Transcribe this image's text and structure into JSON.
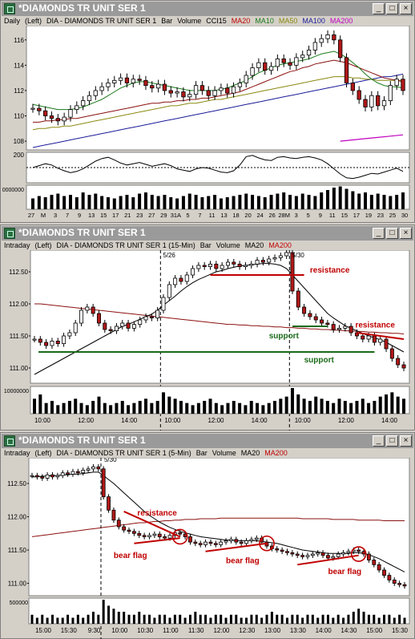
{
  "colors": {
    "up": "#ffffff",
    "down": "#b01818",
    "ma20": "#1a7a1a",
    "ma10": "#1a7a1a",
    "ma50": "#8a8a10",
    "ma100": "#1c1c9a",
    "ma200": "#c000c0",
    "ma200b": "#8b1010",
    "annot_red": "#c00000",
    "annot_green": "#1a6a1a",
    "title_bg": "#9a9a9a"
  },
  "windows": [
    {
      "title": "*DIAMONDS TR UNIT SER 1",
      "info": {
        "interval": "Daily",
        "side": "(Left)",
        "symbol": "DIA - DIAMONDS TR UNIT SER 1",
        "items": [
          {
            "t": "Bar",
            "c": "#000"
          },
          {
            "t": "Volume",
            "c": "#000"
          },
          {
            "t": "CCI15",
            "c": "#000"
          },
          {
            "t": "MA20",
            "c": "#c00000"
          },
          {
            "t": "MA10",
            "c": "#1a7a1a"
          },
          {
            "t": "MA50",
            "c": "#8a8a10"
          },
          {
            "t": "MA100",
            "c": "#1c1c9a"
          },
          {
            "t": "MA200",
            "c": "#c000c0"
          }
        ]
      }
    },
    {
      "title": "*DIAMONDS TR UNIT SER 1",
      "info": {
        "interval": "Intraday",
        "side": "(Left)",
        "symbol": "DIA - DIAMONDS TR UNIT SER 1 (15-Min)",
        "items": [
          {
            "t": "Bar",
            "c": "#000"
          },
          {
            "t": "Volume",
            "c": "#000"
          },
          {
            "t": "MA20",
            "c": "#000"
          },
          {
            "t": "MA200",
            "c": "#c00000"
          }
        ]
      }
    },
    {
      "title": "*DIAMONDS TR UNIT SER 1",
      "info": {
        "interval": "Intraday",
        "side": "(Left)",
        "symbol": "DIA - DIAMONDS TR UNIT SER 1 (5-Min)",
        "items": [
          {
            "t": "Bar",
            "c": "#000"
          },
          {
            "t": "Volume",
            "c": "#000"
          },
          {
            "t": "MA20",
            "c": "#000"
          },
          {
            "t": "MA200",
            "c": "#c00000"
          }
        ]
      }
    }
  ],
  "window_buttons": [
    "_",
    "□",
    "×"
  ],
  "chart_data": [
    {
      "type": "candlestick",
      "panel": "daily-price",
      "x_labels": [
        "27",
        "M",
        "3",
        "7",
        "9",
        "13",
        "15",
        "17",
        "21",
        "23",
        "27",
        "29",
        "31A",
        "5",
        "7",
        "11",
        "13",
        "18",
        "20",
        "24",
        "26",
        "28M",
        "3",
        "5",
        "9",
        "11",
        "15",
        "17",
        "19",
        "23",
        "25",
        "30"
      ],
      "ylim": [
        107.5,
        117
      ],
      "yticks": [
        "108",
        "110",
        "112",
        "114",
        "116"
      ],
      "closes": [
        110.6,
        110.4,
        110.0,
        109.8,
        109.6,
        109.9,
        110.5,
        110.8,
        111.2,
        111.6,
        112.0,
        112.3,
        112.6,
        112.8,
        113.0,
        112.6,
        112.9,
        112.8,
        112.4,
        112.2,
        112.5,
        112.0,
        111.8,
        111.9,
        111.5,
        111.7,
        112.4,
        112.0,
        111.6,
        112.0,
        112.2,
        111.8,
        112.3,
        112.6,
        113.2,
        113.8,
        114.2,
        113.6,
        113.9,
        114.5,
        114.2,
        114.0,
        114.6,
        114.8,
        115.2,
        115.8,
        116.1,
        116.4,
        116.0,
        114.6,
        112.6,
        112.0,
        111.3,
        110.7,
        111.6,
        110.8,
        111.2,
        112.4,
        112.9,
        112.0
      ],
      "ma20": [
        110.9,
        110.8,
        110.7,
        110.6,
        110.5,
        110.5,
        110.5,
        110.6,
        110.7,
        110.9,
        111.1,
        111.3,
        111.6,
        111.9,
        112.2,
        112.4,
        112.6,
        112.7,
        112.7,
        112.6,
        112.5,
        112.4,
        112.3,
        112.2,
        112.1,
        112.0,
        112.0,
        112.0,
        112.0,
        112.0,
        112.1,
        112.2,
        112.4,
        112.6,
        112.8,
        113.1,
        113.4,
        113.6,
        113.8,
        114.0,
        114.1,
        114.2,
        114.3,
        114.4,
        114.5,
        114.7,
        114.9,
        115.0,
        115.1,
        114.9,
        114.6,
        114.2,
        113.8,
        113.3,
        112.9,
        112.6,
        112.4,
        112.3,
        112.3,
        112.2
      ],
      "ma50": [
        109.5,
        109.5,
        109.6,
        109.6,
        109.7,
        109.7,
        109.8,
        109.8,
        109.9,
        110.0,
        110.1,
        110.2,
        110.3,
        110.4,
        110.5,
        110.6,
        110.7,
        110.8,
        110.9,
        111.0,
        111.0,
        111.1,
        111.1,
        111.2,
        111.2,
        111.3,
        111.3,
        111.4,
        111.4,
        111.5,
        111.6,
        111.7,
        111.8,
        111.9,
        112.1,
        112.3,
        112.5,
        112.7,
        112.9,
        113.1,
        113.3,
        113.5,
        113.6,
        113.8,
        113.9,
        114.1,
        114.2,
        114.3,
        114.4,
        114.3,
        114.2,
        114.0,
        113.8,
        113.6,
        113.4,
        113.2,
        113.0,
        112.9,
        112.8,
        112.7
      ],
      "ma100": [
        108.9,
        109.0,
        109.0,
        109.1,
        109.1,
        109.2,
        109.2,
        109.3,
        109.4,
        109.5,
        109.6,
        109.7,
        109.8,
        109.9,
        110.0,
        110.1,
        110.2,
        110.3,
        110.4,
        110.5,
        110.6,
        110.7,
        110.8,
        110.8,
        110.9,
        111.0,
        111.0,
        111.1,
        111.2,
        111.3,
        111.3,
        111.4,
        111.5,
        111.6,
        111.7,
        111.8,
        111.9,
        112.0,
        112.1,
        112.2,
        112.3,
        112.4,
        112.5,
        112.6,
        112.7,
        112.8,
        112.9,
        113.0,
        113.1,
        113.1,
        113.1,
        113.0,
        113.0,
        112.9,
        112.9,
        112.8,
        112.8,
        112.8,
        112.8,
        112.8
      ],
      "ma10": [
        107.5,
        107.6,
        107.7,
        107.8,
        107.9,
        108.0,
        108.1,
        108.2,
        108.3,
        108.4,
        108.5,
        108.6,
        108.7,
        108.8,
        108.9,
        109.0,
        109.1,
        109.2,
        109.3,
        109.4,
        109.5,
        109.6,
        109.7,
        109.8,
        109.9,
        110.0,
        110.1,
        110.2,
        110.3,
        110.4,
        110.5,
        110.6,
        110.7,
        110.8,
        110.9,
        111.0,
        111.1,
        111.2,
        111.3,
        111.4,
        111.5,
        111.6,
        111.7,
        111.8,
        111.9,
        112.0,
        112.1,
        112.2,
        112.3,
        112.4,
        112.5,
        112.6,
        112.7,
        112.8,
        112.9,
        113.0,
        113.1,
        113.1,
        113.2,
        113.3
      ],
      "ma200_segment": [
        108.0,
        108.1,
        108.2,
        108.3,
        108.4,
        108.5
      ]
    },
    {
      "type": "line",
      "panel": "daily-cci",
      "yticks": [
        "200"
      ],
      "values": [
        0,
        30,
        60,
        40,
        -10,
        -50,
        -80,
        -60,
        -20,
        40,
        100,
        140,
        160,
        120,
        70,
        40,
        60,
        80,
        50,
        20,
        40,
        60,
        30,
        -20,
        -40,
        -60,
        -20,
        0,
        -10,
        -40,
        -70,
        -80,
        -50,
        40,
        170,
        190,
        150,
        120,
        110,
        160,
        170,
        150,
        140,
        160,
        170,
        150,
        120,
        60,
        -20,
        -100,
        -160,
        -170,
        -150,
        -120,
        -90,
        -100,
        -70,
        -40,
        -10,
        -60
      ],
      "dashed_level": "0"
    },
    {
      "type": "bar",
      "panel": "daily-volume",
      "ytick": "20000000",
      "values": [
        9,
        11,
        10,
        12,
        13,
        11,
        12,
        10,
        14,
        12,
        13,
        11,
        10,
        9,
        11,
        12,
        10,
        13,
        14,
        12,
        11,
        12,
        10,
        9,
        11,
        13,
        12,
        10,
        11,
        12,
        9,
        10,
        11,
        12,
        13,
        12,
        11,
        10,
        12,
        13,
        14,
        12,
        11,
        13,
        12,
        11,
        14,
        16,
        18,
        19,
        17,
        15,
        13,
        14,
        12,
        13,
        12,
        11,
        12,
        14
      ]
    },
    {
      "type": "candlestick",
      "panel": "15min-price",
      "x_labels": [
        "10:00",
        "12:00",
        "14:00",
        "10:00",
        "12:00",
        "14:00",
        "10:00",
        "12:00",
        "14:00"
      ],
      "date_markers": [
        "5/26",
        "5/30"
      ],
      "ylim": [
        110.8,
        112.8
      ],
      "yticks": [
        "111.00",
        "111.50",
        "112.00",
        "112.50"
      ],
      "closes": [
        111.45,
        111.4,
        111.35,
        111.42,
        111.38,
        111.5,
        111.55,
        111.7,
        111.9,
        111.95,
        111.85,
        111.7,
        111.6,
        111.58,
        111.65,
        111.7,
        111.62,
        111.68,
        111.75,
        111.8,
        111.78,
        111.9,
        112.1,
        112.3,
        112.4,
        112.35,
        112.45,
        112.55,
        112.6,
        112.58,
        112.62,
        112.55,
        112.6,
        112.65,
        112.62,
        112.58,
        112.6,
        112.62,
        112.68,
        112.65,
        112.7,
        112.72,
        112.75,
        112.8,
        112.2,
        111.95,
        111.85,
        111.8,
        111.75,
        111.7,
        111.68,
        111.6,
        111.62,
        111.65,
        111.55,
        111.5,
        111.45,
        111.5,
        111.4,
        111.45,
        111.3,
        111.15,
        111.05,
        111.0
      ],
      "ma20": [
        110.9,
        110.95,
        111.0,
        111.05,
        111.1,
        111.15,
        111.2,
        111.25,
        111.3,
        111.35,
        111.4,
        111.45,
        111.5,
        111.55,
        111.6,
        111.65,
        111.68,
        111.72,
        111.76,
        111.8,
        111.84,
        111.9,
        111.98,
        112.05,
        112.12,
        112.2,
        112.27,
        112.33,
        112.38,
        112.42,
        112.46,
        112.5,
        112.52,
        112.55,
        112.57,
        112.59,
        112.6,
        112.61,
        112.62,
        112.63,
        112.63,
        112.62,
        112.6,
        112.55,
        112.45,
        112.35,
        112.25,
        112.15,
        112.05,
        111.95,
        111.85,
        111.78,
        111.72,
        111.66,
        111.62,
        111.58,
        111.54,
        111.5,
        111.47,
        111.44,
        111.4,
        111.35,
        111.3,
        111.25
      ],
      "ma200": [
        112.0,
        112.0,
        111.99,
        111.98,
        111.97,
        111.96,
        111.95,
        111.94,
        111.93,
        111.92,
        111.91,
        111.9,
        111.89,
        111.88,
        111.87,
        111.86,
        111.85,
        111.84,
        111.83,
        111.82,
        111.81,
        111.8,
        111.79,
        111.78,
        111.77,
        111.76,
        111.75,
        111.74,
        111.73,
        111.72,
        111.71,
        111.7,
        111.69,
        111.68,
        111.68,
        111.67,
        111.67,
        111.66,
        111.66,
        111.65,
        111.65,
        111.64,
        111.64,
        111.63,
        111.63,
        111.62,
        111.62,
        111.61,
        111.61,
        111.6,
        111.6,
        111.59,
        111.59,
        111.58,
        111.58,
        111.57,
        111.57,
        111.56,
        111.56,
        111.55,
        111.55,
        111.54,
        111.54,
        111.53
      ],
      "annotations": {
        "resistance_1": "resistance",
        "resistance_2": "resistance",
        "support_1": "support",
        "support_2": "support"
      },
      "levels": {
        "resistance": 112.45,
        "support_short": 111.65,
        "support_long": 111.25
      }
    },
    {
      "type": "bar",
      "panel": "15min-volume",
      "ytick": "10000000",
      "values": [
        7,
        9,
        5,
        6,
        4,
        5,
        6,
        7,
        5,
        4,
        6,
        8,
        5,
        4,
        5,
        6,
        4,
        5,
        6,
        7,
        5,
        6,
        10,
        8,
        7,
        6,
        5,
        4,
        5,
        6,
        7,
        5,
        4,
        5,
        6,
        5,
        4,
        6,
        5,
        4,
        5,
        6,
        7,
        8,
        12,
        9,
        7,
        6,
        8,
        7,
        6,
        5,
        7,
        6,
        5,
        6,
        7,
        5,
        6,
        8,
        9,
        10,
        8,
        7
      ]
    },
    {
      "type": "candlestick",
      "panel": "5min-price",
      "x_labels": [
        "15:00",
        "15:30",
        "9:30",
        "10:00",
        "10:30",
        "11:00",
        "11:30",
        "12:00",
        "12:30",
        "13:00",
        "13:30",
        "14:00",
        "14:30",
        "15:00",
        "15:30"
      ],
      "date_markers": [
        "5/30"
      ],
      "ylim": [
        110.85,
        112.85
      ],
      "yticks": [
        "111.00",
        "111.50",
        "112.00",
        "112.50"
      ],
      "closes": [
        112.62,
        112.6,
        112.58,
        112.63,
        112.6,
        112.62,
        112.66,
        112.64,
        112.68,
        112.66,
        112.7,
        112.72,
        112.75,
        112.72,
        112.3,
        112.1,
        111.95,
        111.85,
        111.8,
        111.78,
        111.75,
        111.72,
        111.7,
        111.72,
        111.74,
        111.7,
        111.68,
        111.72,
        111.76,
        111.74,
        111.7,
        111.62,
        111.6,
        111.58,
        111.62,
        111.6,
        111.58,
        111.62,
        111.64,
        111.66,
        111.62,
        111.6,
        111.64,
        111.66,
        111.68,
        111.62,
        111.56,
        111.52,
        111.5,
        111.48,
        111.46,
        111.44,
        111.42,
        111.4,
        111.42,
        111.44,
        111.46,
        111.42,
        111.38,
        111.4,
        111.44,
        111.46,
        111.48,
        111.5,
        111.48,
        111.44,
        111.35,
        111.28,
        111.2,
        111.12,
        111.05,
        111.0,
        110.98,
        110.96
      ],
      "ma20": [
        112.6,
        112.6,
        112.61,
        112.61,
        112.62,
        112.62,
        112.63,
        112.63,
        112.64,
        112.64,
        112.65,
        112.66,
        112.67,
        112.67,
        112.62,
        112.56,
        112.5,
        112.43,
        112.36,
        112.29,
        112.22,
        112.15,
        112.08,
        112.02,
        111.97,
        111.92,
        111.88,
        111.84,
        111.81,
        111.78,
        111.76,
        111.74,
        111.72,
        111.7,
        111.69,
        111.68,
        111.67,
        111.66,
        111.65,
        111.65,
        111.64,
        111.64,
        111.64,
        111.64,
        111.64,
        111.63,
        111.62,
        111.61,
        111.6,
        111.58,
        111.56,
        111.54,
        111.52,
        111.5,
        111.49,
        111.48,
        111.47,
        111.46,
        111.45,
        111.45,
        111.45,
        111.45,
        111.45,
        111.46,
        111.46,
        111.45,
        111.43,
        111.4,
        111.37,
        111.33,
        111.29,
        111.25,
        111.21,
        111.17
      ],
      "ma200": [
        111.7,
        111.71,
        111.72,
        111.73,
        111.74,
        111.75,
        111.76,
        111.77,
        111.78,
        111.79,
        111.8,
        111.81,
        111.82,
        111.83,
        111.84,
        111.85,
        111.86,
        111.87,
        111.88,
        111.89,
        111.9,
        111.91,
        111.91,
        111.92,
        111.93,
        111.93,
        111.94,
        111.94,
        111.95,
        111.95,
        111.96,
        111.96,
        111.96,
        111.97,
        111.97,
        111.97,
        111.97,
        111.98,
        111.98,
        111.98,
        111.98,
        111.98,
        111.98,
        111.98,
        111.98,
        111.98,
        111.98,
        111.98,
        111.98,
        111.98,
        111.98,
        111.98,
        111.98,
        111.97,
        111.97,
        111.97,
        111.97,
        111.97,
        111.97,
        111.96,
        111.96,
        111.96,
        111.96,
        111.96,
        111.95,
        111.95,
        111.95,
        111.95,
        111.95,
        111.94,
        111.94,
        111.94,
        111.94,
        111.94
      ],
      "annotations": {
        "resistance": "resistance",
        "bear_flag_1": "bear flag",
        "bear_flag_2": "bear flag",
        "bear_flag_3": "bear flag"
      }
    },
    {
      "type": "bar",
      "panel": "5min-volume",
      "ytick": "500000",
      "values": [
        3,
        2,
        3,
        2,
        3,
        2,
        2,
        3,
        2,
        3,
        2,
        3,
        4,
        3,
        8,
        6,
        5,
        4,
        4,
        3,
        3,
        4,
        3,
        3,
        2,
        3,
        3,
        2,
        3,
        3,
        2,
        3,
        4,
        3,
        3,
        2,
        3,
        3,
        2,
        3,
        3,
        2,
        2,
        3,
        3,
        2,
        3,
        4,
        3,
        3,
        2,
        3,
        3,
        2,
        3,
        3,
        2,
        3,
        3,
        2,
        3,
        2,
        3,
        4,
        5,
        4,
        3,
        3,
        2,
        3,
        3,
        2,
        3,
        2
      ]
    }
  ]
}
